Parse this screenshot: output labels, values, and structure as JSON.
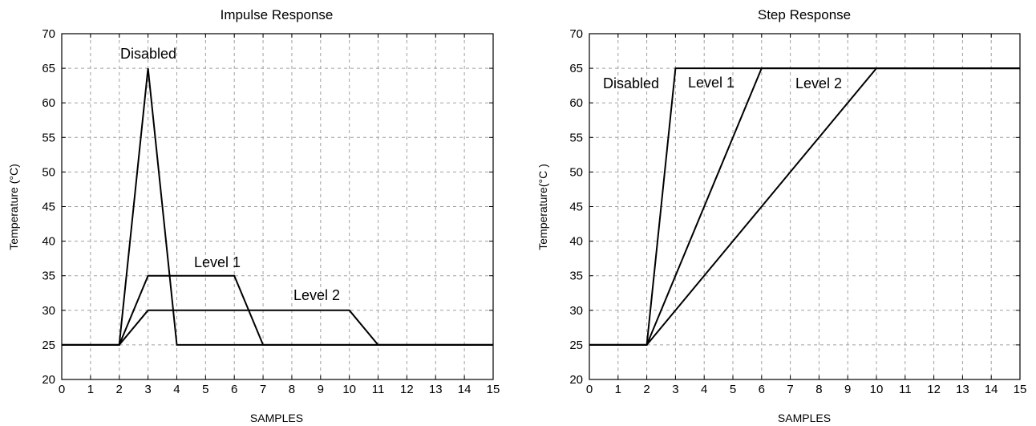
{
  "chart_data": [
    {
      "type": "line",
      "title": "Impulse Response",
      "xlabel": "SAMPLES",
      "ylabel": "Temperature (°C)",
      "xlim": [
        0,
        15
      ],
      "ylim": [
        20,
        70
      ],
      "x_ticks": [
        0,
        1,
        2,
        3,
        4,
        5,
        6,
        7,
        8,
        9,
        10,
        11,
        12,
        13,
        14,
        15
      ],
      "y_ticks": [
        20,
        25,
        30,
        35,
        40,
        45,
        50,
        55,
        60,
        65,
        70
      ],
      "grid": true,
      "series": [
        {
          "name": "Disabled",
          "x": [
            0,
            2,
            3,
            4,
            15
          ],
          "y": [
            25,
            25,
            65,
            25,
            25
          ]
        },
        {
          "name": "Level 1",
          "x": [
            0,
            2,
            3,
            6,
            7,
            15
          ],
          "y": [
            25,
            25,
            35,
            35,
            25,
            25
          ]
        },
        {
          "name": "Level 2",
          "x": [
            0,
            2,
            3,
            10,
            11,
            15
          ],
          "y": [
            25,
            25,
            30,
            30,
            25,
            25
          ]
        }
      ]
    },
    {
      "type": "line",
      "title": "Step Response",
      "xlabel": "SAMPLES",
      "ylabel": "Temperature(°C )",
      "xlim": [
        0,
        15
      ],
      "ylim": [
        20,
        70
      ],
      "x_ticks": [
        0,
        1,
        2,
        3,
        4,
        5,
        6,
        7,
        8,
        9,
        10,
        11,
        12,
        13,
        14,
        15
      ],
      "y_ticks": [
        20,
        25,
        30,
        35,
        40,
        45,
        50,
        55,
        60,
        65,
        70
      ],
      "grid": true,
      "series": [
        {
          "name": "Disabled",
          "x": [
            0,
            2,
            3,
            15
          ],
          "y": [
            25,
            25,
            65,
            65
          ]
        },
        {
          "name": "Level 1",
          "x": [
            0,
            2,
            6,
            15
          ],
          "y": [
            25,
            25,
            65,
            65
          ]
        },
        {
          "name": "Level 2",
          "x": [
            0,
            2,
            10,
            15
          ],
          "y": [
            25,
            25,
            65,
            65
          ]
        }
      ]
    }
  ]
}
